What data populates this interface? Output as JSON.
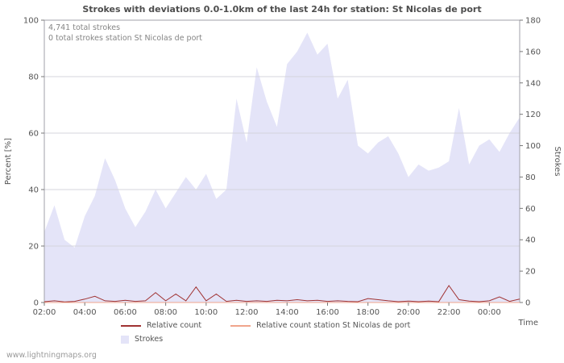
{
  "title": "Strokes with deviations 0.0-1.0km of the last 24h for station: St Nicolas de port",
  "annotations": {
    "total": "4,741 total strokes",
    "station_total": "0 total strokes station St Nicolas de port"
  },
  "watermark": "www.lightningmaps.org",
  "chart_data": {
    "type": "area",
    "times": [
      "02:00",
      "02:30",
      "03:00",
      "03:30",
      "04:00",
      "04:30",
      "05:00",
      "05:30",
      "06:00",
      "06:30",
      "07:00",
      "07:30",
      "08:00",
      "08:30",
      "09:00",
      "09:30",
      "10:00",
      "10:30",
      "11:00",
      "11:30",
      "12:00",
      "12:30",
      "13:00",
      "13:30",
      "14:00",
      "14:30",
      "15:00",
      "15:30",
      "16:00",
      "16:30",
      "17:00",
      "17:30",
      "18:00",
      "18:30",
      "19:00",
      "19:30",
      "20:00",
      "20:30",
      "21:00",
      "21:30",
      "22:00",
      "22:30",
      "23:00",
      "23:30",
      "00:00",
      "00:30",
      "01:00",
      "01:30"
    ],
    "x_labels": [
      "02:00",
      "04:00",
      "06:00",
      "08:00",
      "10:00",
      "12:00",
      "14:00",
      "16:00",
      "18:00",
      "20:00",
      "22:00",
      "00:00"
    ],
    "x_tick_indices": [
      0,
      4,
      8,
      12,
      16,
      20,
      24,
      28,
      32,
      36,
      40,
      44
    ],
    "x_axis_label": "Time",
    "left_axis": {
      "label": "Percent  [%]",
      "min": 0,
      "max": 100,
      "ticks": [
        0,
        20,
        40,
        60,
        80,
        100
      ]
    },
    "right_axis": {
      "label": "Strokes",
      "min": 0,
      "max": 180,
      "ticks": [
        0,
        20,
        40,
        60,
        80,
        100,
        120,
        140,
        160,
        180
      ]
    },
    "grid": true,
    "legend_position": "bottom",
    "series": [
      {
        "name": "Strokes",
        "kind": "area",
        "axis": "right",
        "color": "#e4e4f8",
        "values": [
          45,
          62,
          40,
          35,
          55,
          68,
          92,
          78,
          60,
          48,
          58,
          72,
          60,
          70,
          80,
          72,
          82,
          66,
          72,
          130,
          102,
          150,
          128,
          112,
          152,
          160,
          172,
          158,
          165,
          130,
          142,
          100,
          95,
          102,
          106,
          95,
          80,
          88,
          84,
          86,
          90,
          124,
          88,
          100,
          104,
          96,
          108,
          118
        ]
      },
      {
        "name": "Relative count",
        "kind": "line",
        "axis": "left",
        "color": "#a03232",
        "values": [
          0.3,
          0.6,
          0.2,
          0.4,
          1.2,
          2.2,
          0.6,
          0.4,
          0.8,
          0.4,
          0.6,
          3.5,
          0.6,
          3.0,
          0.6,
          5.5,
          0.6,
          3.0,
          0.4,
          0.8,
          0.4,
          0.6,
          0.4,
          0.8,
          0.6,
          1.0,
          0.6,
          0.8,
          0.4,
          0.6,
          0.4,
          0.3,
          1.4,
          1.0,
          0.6,
          0.3,
          0.5,
          0.3,
          0.5,
          0.3,
          6.0,
          1.0,
          0.5,
          0.3,
          0.6,
          2.0,
          0.4,
          1.2
        ]
      },
      {
        "name": "Relative count station St Nicolas de port",
        "kind": "line",
        "axis": "left",
        "color": "#f0a58c",
        "values": [
          0,
          0,
          0,
          0,
          0,
          0,
          0,
          0,
          0,
          0,
          0,
          0,
          0,
          0,
          0,
          0,
          0,
          0,
          0,
          0,
          0,
          0,
          0,
          0,
          0,
          0,
          0,
          0,
          0,
          0,
          0,
          0,
          0,
          0,
          0,
          0,
          0,
          0,
          0,
          0,
          0,
          0,
          0,
          0,
          0,
          0,
          0,
          0
        ]
      }
    ],
    "legend": [
      {
        "label": "Relative count",
        "swatch": "line",
        "color": "#a03232",
        "row": 1
      },
      {
        "label": "Relative count station St Nicolas de port",
        "swatch": "line",
        "color": "#f0a58c",
        "row": 1
      },
      {
        "label": "Strokes",
        "swatch": "area",
        "color": "#e4e4f8",
        "row": 2
      }
    ]
  }
}
